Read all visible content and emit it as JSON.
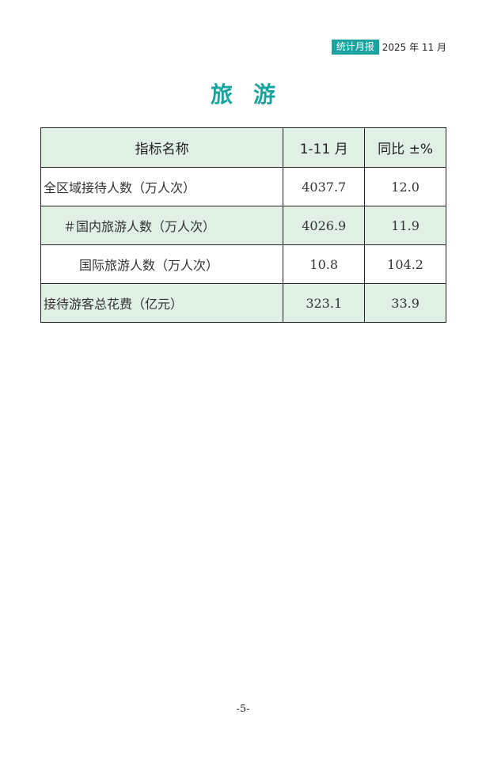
{
  "header": {
    "badge": "统计月报",
    "date": "2025 年 11 月"
  },
  "title": "旅游",
  "table": {
    "columns": [
      "指标名称",
      "1-11 月",
      "同比 ±%"
    ],
    "rows": [
      {
        "name": "全区域接待人数（万人次）",
        "value": "4037.7",
        "yoy": "12.0"
      },
      {
        "name": "＃国内旅游人数（万人次）",
        "value": "4026.9",
        "yoy": "11.9"
      },
      {
        "name": "国际旅游人数（万人次）",
        "value": "10.8",
        "yoy": "104.2"
      },
      {
        "name": "接待游客总花费（亿元）",
        "value": "323.1",
        "yoy": "33.9"
      }
    ]
  },
  "page_number": "-5-",
  "colors": {
    "accent": "#1aa39f",
    "row_fill": "#e1f0e4"
  }
}
